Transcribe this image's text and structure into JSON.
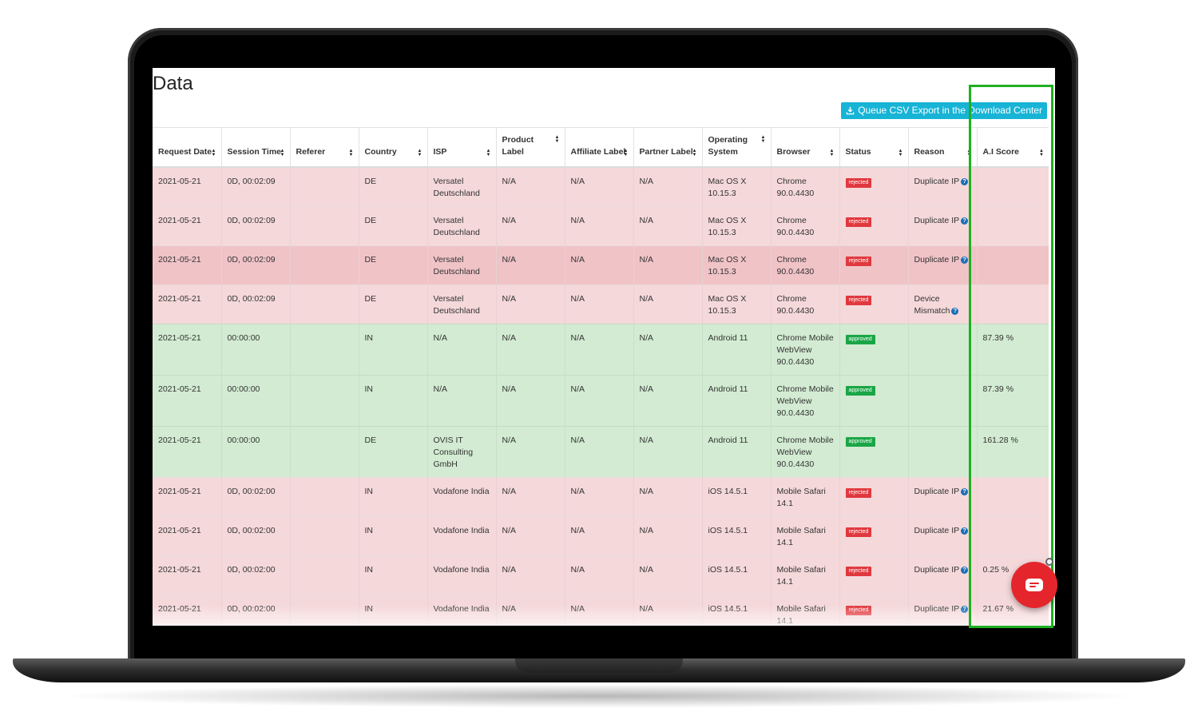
{
  "page": {
    "title": "Data",
    "csv_button_label": "Queue CSV Export in the Download Center"
  },
  "columns": [
    "Request Date",
    "Session Time",
    "Referer",
    "Country",
    "ISP",
    "Product Label",
    "Affiliate Label",
    "Partner Label",
    "Operating System",
    "Browser",
    "Status",
    "Reason",
    "A.I Score"
  ],
  "rows": [
    {
      "cells": [
        "2021-05-21",
        "0D, 00:02:09",
        "",
        "DE",
        "Versatel Deutschland",
        "N/A",
        "N/A",
        "N/A",
        "Mac OS X 10.15.3",
        "Chrome 90.0.4430",
        "rejected",
        "Duplicate IP",
        ""
      ]
    },
    {
      "cells": [
        "2021-05-21",
        "0D, 00:02:09",
        "",
        "DE",
        "Versatel Deutschland",
        "N/A",
        "N/A",
        "N/A",
        "Mac OS X 10.15.3",
        "Chrome 90.0.4430",
        "rejected",
        "Duplicate IP",
        ""
      ]
    },
    {
      "cells": [
        "2021-05-21",
        "0D, 00:02:09",
        "",
        "DE",
        "Versatel Deutschland",
        "N/A",
        "N/A",
        "N/A",
        "Mac OS X 10.15.3",
        "Chrome 90.0.4430",
        "rejected",
        "Duplicate IP",
        ""
      ]
    },
    {
      "cells": [
        "2021-05-21",
        "0D, 00:02:09",
        "",
        "DE",
        "Versatel Deutschland",
        "N/A",
        "N/A",
        "N/A",
        "Mac OS X 10.15.3",
        "Chrome 90.0.4430",
        "rejected",
        "Device Mismatch",
        ""
      ]
    },
    {
      "cells": [
        "2021-05-21",
        "00:00:00",
        "",
        "IN",
        "N/A",
        "N/A",
        "N/A",
        "N/A",
        "Android 11",
        "Chrome Mobile WebView 90.0.4430",
        "approved",
        "",
        "87.39 %"
      ]
    },
    {
      "cells": [
        "2021-05-21",
        "00:00:00",
        "",
        "IN",
        "N/A",
        "N/A",
        "N/A",
        "N/A",
        "Android 11",
        "Chrome Mobile WebView 90.0.4430",
        "approved",
        "",
        "87.39 %"
      ]
    },
    {
      "cells": [
        "2021-05-21",
        "00:00:00",
        "",
        "DE",
        "OVIS IT Consulting GmbH",
        "N/A",
        "N/A",
        "N/A",
        "Android 11",
        "Chrome Mobile WebView 90.0.4430",
        "approved",
        "",
        "161.28 %"
      ]
    },
    {
      "cells": [
        "2021-05-21",
        "0D, 00:02:00",
        "",
        "IN",
        "Vodafone India",
        "N/A",
        "N/A",
        "N/A",
        "iOS 14.5.1",
        "Mobile Safari 14.1",
        "rejected",
        "Duplicate IP",
        ""
      ]
    },
    {
      "cells": [
        "2021-05-21",
        "0D, 00:02:00",
        "",
        "IN",
        "Vodafone India",
        "N/A",
        "N/A",
        "N/A",
        "iOS 14.5.1",
        "Mobile Safari 14.1",
        "rejected",
        "Duplicate IP",
        ""
      ]
    },
    {
      "cells": [
        "2021-05-21",
        "0D, 00:02:00",
        "",
        "IN",
        "Vodafone India",
        "N/A",
        "N/A",
        "N/A",
        "iOS 14.5.1",
        "Mobile Safari 14.1",
        "rejected",
        "Duplicate IP",
        "0.25 %"
      ]
    },
    {
      "cells": [
        "2021-05-21",
        "0D, 00:02:00",
        "",
        "IN",
        "Vodafone India",
        "N/A",
        "N/A",
        "N/A",
        "iOS 14.5.1",
        "Mobile Safari 14.1",
        "rejected",
        "Duplicate IP",
        "21.67 %"
      ]
    }
  ],
  "colors": {
    "rejected_row": "#f5d8da",
    "approved_row": "#d2ebd2",
    "rejected_badge": "#e0383e",
    "approved_badge": "#1aa646",
    "csv_button": "#17b4d6",
    "highlight_box": "#1fb01f",
    "chat_button": "#e4262c"
  },
  "icons": {
    "sort": "sort-icon",
    "help": "question-circle-icon",
    "download": "download-icon",
    "chat": "chat-icon"
  }
}
